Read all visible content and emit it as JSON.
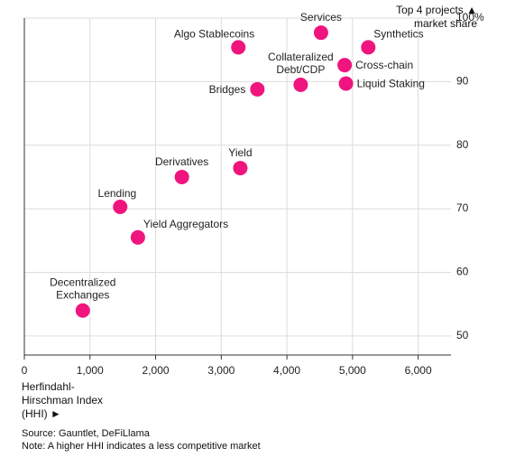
{
  "chart_data": {
    "type": "scatter",
    "ylabel_line1": "Top 4 projects ▲",
    "ylabel_line2": "market share",
    "xlabel_line1": "Herfindahl-",
    "xlabel_line2": "Hirschman Index",
    "xlabel_line3": "(HHI) ►",
    "xlim": [
      0,
      6500
    ],
    "ylim": [
      47,
      100
    ],
    "grid": true,
    "color": "#f0147e",
    "x_ticks": [
      {
        "value": 0,
        "label": "0"
      },
      {
        "value": 1000,
        "label": "1,000"
      },
      {
        "value": 2000,
        "label": "2,000"
      },
      {
        "value": 3000,
        "label": "3,000"
      },
      {
        "value": 4000,
        "label": "4,000"
      },
      {
        "value": 5000,
        "label": "5,000"
      },
      {
        "value": 6000,
        "label": "6,000"
      }
    ],
    "y_ticks": [
      {
        "value": 100,
        "label": "100%"
      },
      {
        "value": 90,
        "label": "90"
      },
      {
        "value": 80,
        "label": "80"
      },
      {
        "value": 70,
        "label": "70"
      },
      {
        "value": 60,
        "label": "60"
      },
      {
        "value": 50,
        "label": "50"
      }
    ],
    "points": [
      {
        "name": "Services",
        "x": 4520,
        "y": 97.7,
        "label_pos": "above",
        "lines": [
          "Services"
        ]
      },
      {
        "name": "Synthetics",
        "x": 5240,
        "y": 95.4,
        "label_pos": "above-right",
        "lines": [
          "Synthetics"
        ]
      },
      {
        "name": "Algo Stablecoins",
        "x": 3260,
        "y": 95.4,
        "label_pos": "above-left",
        "lines": [
          "Algo Stablecoins"
        ]
      },
      {
        "name": "Cross-chain",
        "x": 4880,
        "y": 92.6,
        "label_pos": "right",
        "lines": [
          "Cross-chain"
        ]
      },
      {
        "name": "Collateralized Debt/CDP",
        "x": 4210,
        "y": 89.5,
        "label_pos": "above-2",
        "lines": [
          "Collateralized",
          "Debt/CDP"
        ]
      },
      {
        "name": "Liquid Staking",
        "x": 4900,
        "y": 89.7,
        "label_pos": "right",
        "lines": [
          "Liquid Staking"
        ]
      },
      {
        "name": "Bridges",
        "x": 3550,
        "y": 88.8,
        "label_pos": "left",
        "lines": [
          "Bridges"
        ]
      },
      {
        "name": "Derivatives",
        "x": 2400,
        "y": 75.0,
        "label_pos": "above",
        "lines": [
          "Derivatives"
        ]
      },
      {
        "name": "Yield",
        "x": 3290,
        "y": 76.4,
        "label_pos": "above",
        "lines": [
          "Yield"
        ]
      },
      {
        "name": "Lending",
        "x": 1460,
        "y": 70.3,
        "label_pos": "above-left",
        "lines": [
          "Lending"
        ]
      },
      {
        "name": "Yield Aggregators",
        "x": 1730,
        "y": 65.5,
        "label_pos": "above-right",
        "lines": [
          "Yield Aggregators"
        ]
      },
      {
        "name": "Decentralized Exchanges",
        "x": 890,
        "y": 54.0,
        "label_pos": "above-2",
        "lines": [
          "Decentralized",
          "Exchanges"
        ]
      }
    ]
  },
  "source_line1": "Source: Gauntlet, DeFiLlama",
  "source_line2": "Note: A higher HHI indicates a less competitive market"
}
